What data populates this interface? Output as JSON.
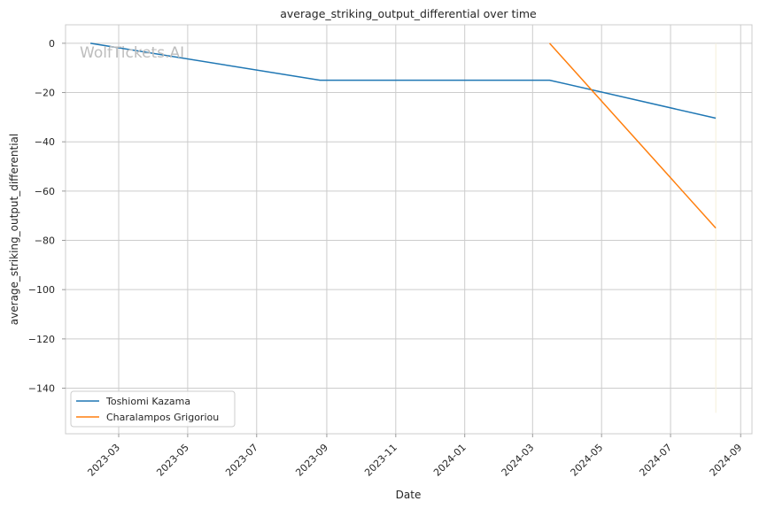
{
  "chart_data": {
    "type": "line",
    "title": "average_striking_output_differential over time",
    "xlabel": "Date",
    "ylabel": "average_striking_output_differential",
    "watermark": "WolfTickets.AI",
    "x_ticks": [
      "2023-03",
      "2023-05",
      "2023-07",
      "2023-09",
      "2023-11",
      "2024-01",
      "2024-03",
      "2024-05",
      "2024-07",
      "2024-09"
    ],
    "y_ticks": [
      0,
      -20,
      -40,
      -60,
      -80,
      -100,
      -120,
      -140
    ],
    "xlim": [
      "2023-01-13",
      "2024-09-11"
    ],
    "ylim": [
      -158.5,
      7.5
    ],
    "grid": true,
    "legend_position": "lower-left",
    "series": [
      {
        "name": "Toshiomi Kazama",
        "color": "#1f77b4",
        "points": [
          {
            "x": "2023-02-04",
            "y": 0
          },
          {
            "x": "2023-08-26",
            "y": -15
          },
          {
            "x": "2024-03-16",
            "y": -15
          },
          {
            "x": "2024-08-10",
            "y": -30.4
          }
        ]
      },
      {
        "name": "Charalampos Grigoriou",
        "color": "#ff7f0e",
        "points": [
          {
            "x": "2024-03-16",
            "y": 0
          },
          {
            "x": "2024-08-10",
            "y": -75
          }
        ]
      }
    ],
    "reference_line": {
      "x": "2024-08-10",
      "y_range": [
        -150,
        0
      ],
      "color": "#f5efd9"
    }
  }
}
